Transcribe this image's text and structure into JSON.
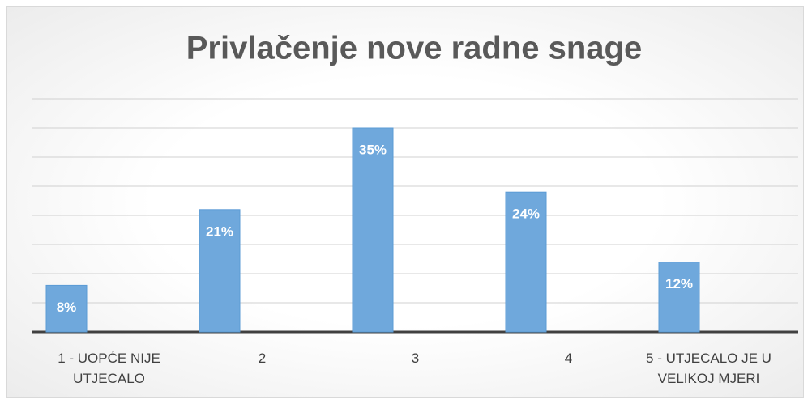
{
  "chart_data": {
    "type": "bar",
    "title": "Privlačenje nove radne snage",
    "categories": [
      "1 - UOPĆE NIJE UTJECALO",
      "2",
      "3",
      "4",
      "5 - UTJECALO JE U VELIKOJ MJERI"
    ],
    "values": [
      8,
      21,
      35,
      24,
      12
    ],
    "value_labels": [
      "8%",
      "21%",
      "35%",
      "24%",
      "12%"
    ],
    "color": "#6fa8dc",
    "ylim": [
      0,
      40
    ],
    "yticks": [
      0,
      5,
      10,
      15,
      20,
      25,
      30,
      35,
      40
    ],
    "grid": true
  }
}
